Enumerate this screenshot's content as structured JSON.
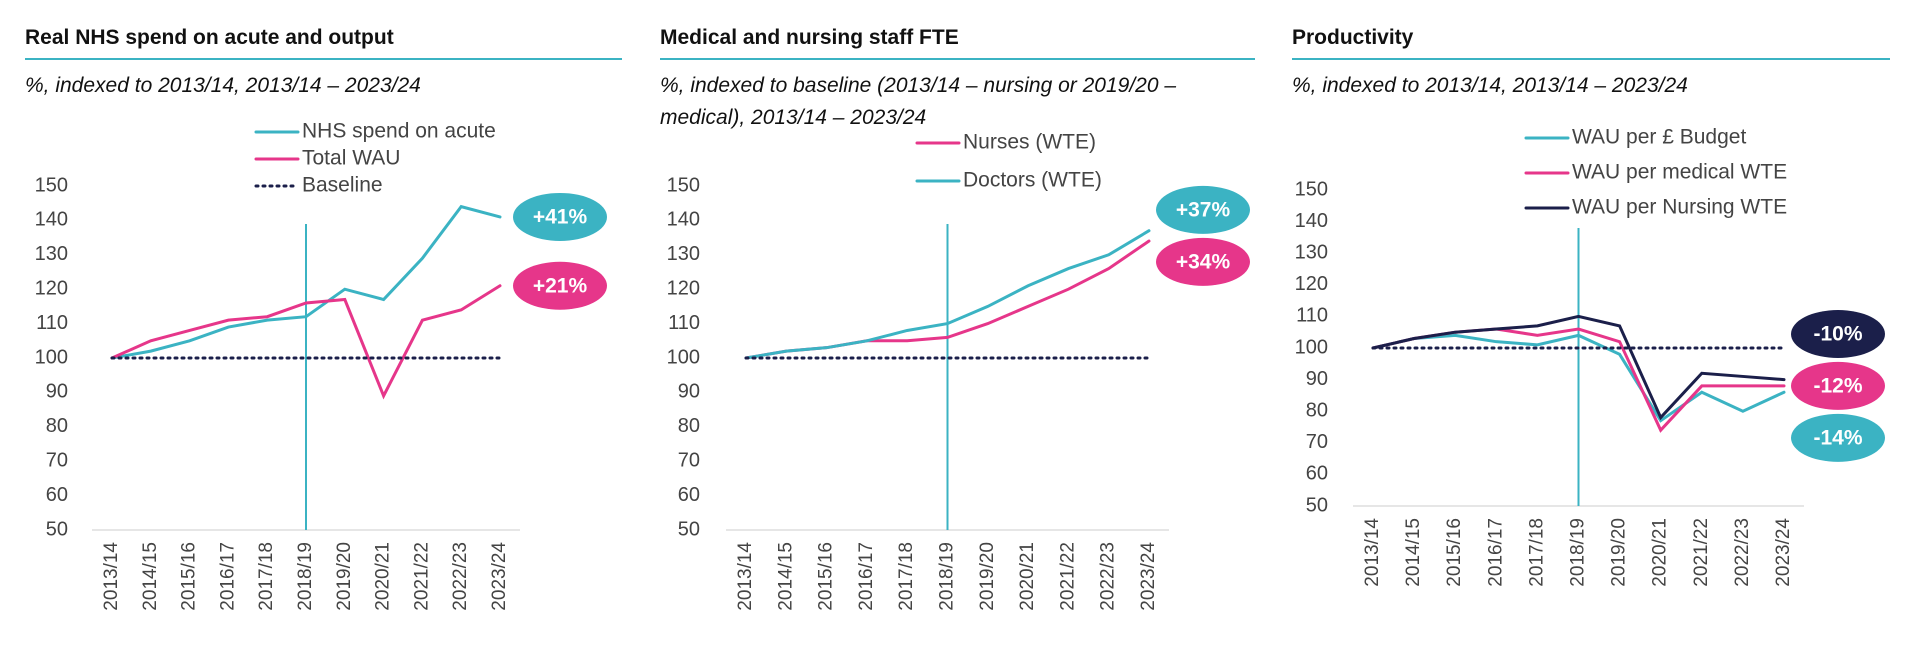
{
  "chart_data": [
    {
      "type": "line",
      "title": "Real NHS spend on acute and output",
      "subtitle": "%, indexed to 2013/14, 2013/14 – 2023/24",
      "categories": [
        "2013/14",
        "2014/15",
        "2015/16",
        "2016/17",
        "2017/18",
        "2018/19",
        "2019/20",
        "2020/21",
        "2021/22",
        "2022/23",
        "2023/24"
      ],
      "ylim": [
        50,
        150
      ],
      "yticks": [
        50,
        60,
        70,
        80,
        90,
        100,
        110,
        120,
        130,
        140,
        150
      ],
      "vline": "2018/19",
      "series": [
        {
          "name": "NHS spend on acute",
          "color": "#3bb3c3",
          "values": [
            100,
            102,
            105,
            109,
            111,
            112,
            120,
            117,
            129,
            144,
            141
          ],
          "end_label": "+41%"
        },
        {
          "name": "Total WAU",
          "color": "#e6368a",
          "values": [
            100,
            105,
            108,
            111,
            112,
            116,
            117,
            89,
            111,
            114,
            121
          ],
          "end_label": "+21%"
        },
        {
          "name": "Baseline",
          "color": "#1b1f4a",
          "dashed": true,
          "values": [
            100,
            100,
            100,
            100,
            100,
            100,
            100,
            100,
            100,
            100,
            100
          ]
        }
      ]
    },
    {
      "type": "line",
      "title": "Medical and nursing staff FTE",
      "subtitle": "%, indexed to baseline (2013/14 – nursing or  2019/20 – medical), 2013/14 – 2023/24",
      "categories": [
        "2013/14",
        "2014/15",
        "2015/16",
        "2016/17",
        "2017/18",
        "2018/19",
        "2019/20",
        "2020/21",
        "2021/22",
        "2022/23",
        "2023/24"
      ],
      "ylim": [
        50,
        150
      ],
      "yticks": [
        50,
        60,
        70,
        80,
        90,
        100,
        110,
        120,
        130,
        140,
        150
      ],
      "vline": "2018/19",
      "series": [
        {
          "name": "Nurses (WTE)",
          "color": "#e6368a",
          "values": [
            100,
            102,
            103,
            105,
            105,
            106,
            110,
            115,
            120,
            126,
            134
          ],
          "end_label": "+34%"
        },
        {
          "name": "Doctors (WTE)",
          "color": "#3bb3c3",
          "values": [
            100,
            102,
            103,
            105,
            108,
            110,
            115,
            121,
            126,
            130,
            137
          ],
          "end_label": "+37%"
        },
        {
          "color": "#1b1f4a",
          "dashed": true,
          "values": [
            100,
            100,
            100,
            100,
            100,
            100,
            100,
            100,
            100,
            100,
            100
          ]
        }
      ]
    },
    {
      "type": "line",
      "title": "Productivity",
      "subtitle": "%, indexed to 2013/14, 2013/14 – 2023/24",
      "categories": [
        "2013/14",
        "2014/15",
        "2015/16",
        "2016/17",
        "2017/18",
        "2018/19",
        "2019/20",
        "2020/21",
        "2021/22",
        "2022/23",
        "2023/24"
      ],
      "ylim": [
        50,
        150
      ],
      "yticks": [
        50,
        60,
        70,
        80,
        90,
        100,
        110,
        120,
        130,
        140,
        150
      ],
      "vline": "2018/19",
      "series": [
        {
          "name": "WAU per £ Budget",
          "color": "#3bb3c3",
          "values": [
            100,
            103,
            104,
            102,
            101,
            104,
            98,
            77,
            86,
            80,
            86
          ],
          "end_label": "-14%"
        },
        {
          "name": "WAU per medical WTE",
          "color": "#e6368a",
          "values": [
            100,
            103,
            105,
            106,
            104,
            106,
            102,
            74,
            88,
            88,
            88
          ],
          "end_label": "-12%"
        },
        {
          "name": "WAU per Nursing WTE",
          "color": "#1b1f4a",
          "values": [
            100,
            103,
            105,
            106,
            107,
            110,
            107,
            78,
            92,
            91,
            90
          ],
          "end_label": "-10%"
        },
        {
          "color": "#1b1f4a",
          "dashed": true,
          "values": [
            100,
            100,
            100,
            100,
            100,
            100,
            100,
            100,
            100,
            100,
            100
          ]
        }
      ]
    }
  ]
}
